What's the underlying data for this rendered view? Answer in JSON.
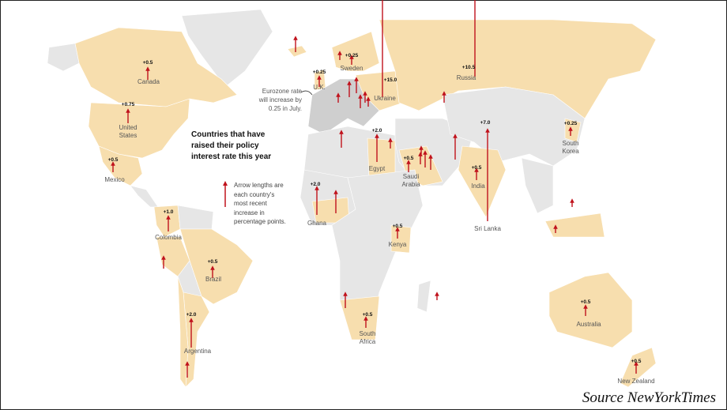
{
  "title": "Countries that have raised their policy interest rate this year",
  "legend": "Arrow lengths are each country's most recent increase in percentage points.",
  "annotation": "Eurozone rate will increase by 0.25 in July.",
  "source": "Source NewYorkTimes",
  "colors": {
    "raised": "#f7deae",
    "not_raised": "#e6e6e6",
    "eurozone": "#cfcfcf",
    "arrow": "#c0121c",
    "water": "#ffffff"
  },
  "countries": [
    {
      "name": "Canada",
      "increase": "+0.5"
    },
    {
      "name": "United States",
      "increase": "+0.75"
    },
    {
      "name": "Mexico",
      "increase": "+0.5"
    },
    {
      "name": "Colombia",
      "increase": "+1.0"
    },
    {
      "name": "Brazil",
      "increase": "+0.5"
    },
    {
      "name": "Argentina",
      "increase": "+2.0"
    },
    {
      "name": "U.K.",
      "increase": "+0.25"
    },
    {
      "name": "Sweden",
      "increase": "+0.25"
    },
    {
      "name": "Ukraine",
      "increase": "+15.0"
    },
    {
      "name": "Russia",
      "increase": "+10.5"
    },
    {
      "name": "Egypt",
      "increase": "+2.0"
    },
    {
      "name": "Saudi Arabia",
      "increase": "+0.5"
    },
    {
      "name": "Ghana",
      "increase": "+2.0"
    },
    {
      "name": "Kenya",
      "increase": "+0.5"
    },
    {
      "name": "South Africa",
      "increase": "+0.5"
    },
    {
      "name": "India",
      "increase": "+0.5"
    },
    {
      "name": "Sri Lanka",
      "increase": "+7.0"
    },
    {
      "name": "South Korea",
      "increase": "+0.25"
    },
    {
      "name": "Australia",
      "increase": "+0.5"
    },
    {
      "name": "New Zealand",
      "increase": "+0.5"
    }
  ]
}
